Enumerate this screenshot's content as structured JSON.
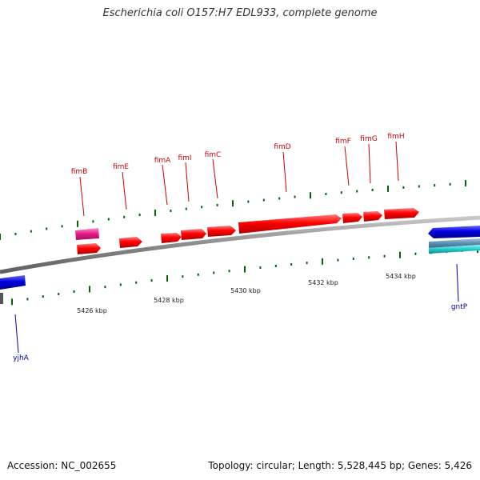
{
  "title": "Escherichia coli O157:H7 EDL933, complete genome",
  "footer": {
    "accession": "Accession: NC_002655",
    "summary": "Topology: circular; Length: 5,528,445 bp; Genes: 5,426"
  },
  "colors": {
    "background": "#ffffff",
    "backbone": "#888888",
    "gene_plus": "#ff0000",
    "gene_plus_label": "#cc0000",
    "gene_minus": "#0000dd",
    "gene_minus_label": "#0000aa",
    "pink_feature": "#e8208a",
    "cyan_feature": "#22cccc",
    "steel_feature": "#5b8fb0",
    "tick": "#006600"
  },
  "kbp_labels": [
    "5426 kbp",
    "5428 kbp",
    "5430 kbp",
    "5432 kbp",
    "5434 kbp"
  ],
  "genes": [
    {
      "name": "fimB",
      "strand": "+"
    },
    {
      "name": "fimE",
      "strand": "+"
    },
    {
      "name": "fimA",
      "strand": "+"
    },
    {
      "name": "fimI",
      "strand": "+"
    },
    {
      "name": "fimC",
      "strand": "+"
    },
    {
      "name": "fimD",
      "strand": "+"
    },
    {
      "name": "fimF",
      "strand": "+"
    },
    {
      "name": "fimG",
      "strand": "+"
    },
    {
      "name": "fimH",
      "strand": "+"
    },
    {
      "name": "yjhA",
      "strand": "-"
    },
    {
      "name": "gntP",
      "strand": "-"
    }
  ]
}
